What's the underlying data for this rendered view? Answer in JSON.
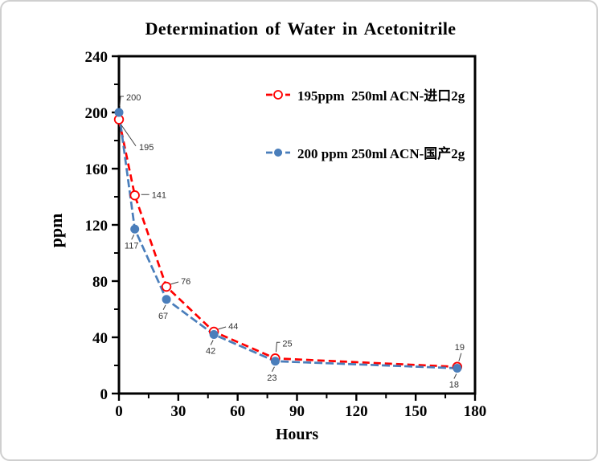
{
  "figure": {
    "background_color": "#ffffff",
    "border_color": "#cfcfcf"
  },
  "chart_data": {
    "type": "line",
    "title": "Determination of Water in Acetonitrile",
    "xlabel": "Hours",
    "ylabel": "ppm",
    "xlim": [
      0,
      180
    ],
    "ylim": [
      0,
      240
    ],
    "x_major_ticks": [
      0,
      30,
      60,
      90,
      120,
      150,
      180
    ],
    "x_minor_tick_step": 15,
    "y_major_ticks": [
      0,
      40,
      80,
      120,
      160,
      200,
      240
    ],
    "y_minor_tick_step": 20,
    "grid": false,
    "legend_position": "upper-right-inside",
    "axis_color": "#000000",
    "data_label_color": "#333333",
    "series": [
      {
        "name": "195ppm  250ml ACN-进口2g",
        "color": "#fe0000",
        "marker": "open-circle",
        "line_style": "dashed",
        "x": [
          0,
          8,
          24,
          48,
          79,
          171
        ],
        "values": [
          195,
          141,
          76,
          44,
          25,
          19
        ],
        "point_labels": [
          "195",
          "141",
          "76",
          "44",
          "25",
          "19"
        ],
        "label_positions": [
          "down-right",
          "right",
          "up-right",
          "up-right",
          "elbow-up",
          "up"
        ]
      },
      {
        "name": "200 ppm 250ml ACN-国产2g",
        "color": "#4a7ebb",
        "marker": "filled-circle",
        "line_style": "dashed",
        "x": [
          0,
          8,
          24,
          48,
          79,
          171
        ],
        "values": [
          200,
          117,
          67,
          42,
          23,
          18
        ],
        "point_labels": [
          "200",
          "117",
          "67",
          "42",
          "23",
          "18"
        ],
        "label_positions": [
          "elbow-up",
          "down-left",
          "down-left",
          "down-left",
          "down-left",
          "down-left"
        ]
      }
    ]
  }
}
